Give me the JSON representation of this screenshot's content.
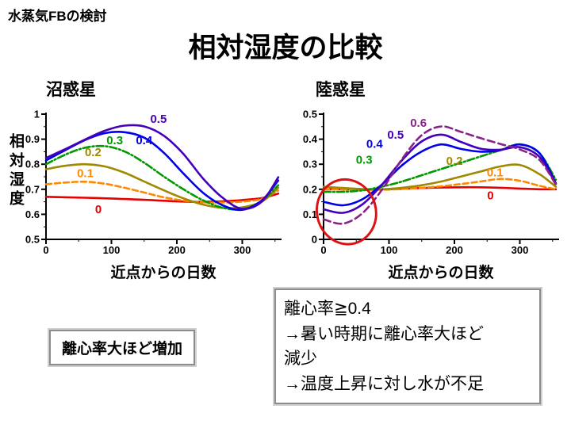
{
  "slide": {
    "topnote": "水蒸気FBの検討",
    "title": "相対湿度の比較"
  },
  "chart_data": [
    {
      "type": "line",
      "title": "沼惑星",
      "xlabel": "近点からの日数",
      "ylabel": "相対湿度",
      "xlim": [
        0,
        360
      ],
      "ylim": [
        0.5,
        1.0
      ],
      "xticks": [
        0,
        100,
        200,
        300
      ],
      "yticks": [
        1,
        0.9,
        0.8,
        0.7,
        0.6,
        0.5
      ],
      "ytick_labels": [
        "1",
        "0.9",
        "0.8",
        "0.7",
        "0.6",
        "0.5"
      ],
      "y_minor": 0.05,
      "grid": false,
      "legend": "inline-labels",
      "x": [
        0,
        30,
        60,
        90,
        120,
        150,
        180,
        210,
        240,
        270,
        300,
        330,
        355
      ],
      "series": [
        {
          "name": "0",
          "color": "#e60000",
          "dash": "none",
          "label_x": 80,
          "label_y": 0.605,
          "values": [
            0.67,
            0.668,
            0.666,
            0.664,
            0.661,
            0.658,
            0.654,
            0.651,
            0.65,
            0.652,
            0.657,
            0.665,
            0.683
          ]
        },
        {
          "name": "0.1",
          "color": "#ff8800",
          "dash": "7,4",
          "label_x": 60,
          "label_y": 0.748,
          "values": [
            0.72,
            0.727,
            0.73,
            0.722,
            0.706,
            0.687,
            0.668,
            0.655,
            0.648,
            0.647,
            0.651,
            0.662,
            0.695
          ]
        },
        {
          "name": "0.2",
          "color": "#a08800",
          "dash": "none",
          "label_x": 72,
          "label_y": 0.832,
          "values": [
            0.78,
            0.794,
            0.8,
            0.791,
            0.766,
            0.731,
            0.696,
            0.664,
            0.639,
            0.626,
            0.628,
            0.651,
            0.706
          ]
        },
        {
          "name": "0.3",
          "color": "#009900",
          "dash": "9,3,2,3",
          "label_x": 105,
          "label_y": 0.88,
          "values": [
            0.8,
            0.839,
            0.866,
            0.872,
            0.851,
            0.806,
            0.751,
            0.7,
            0.656,
            0.626,
            0.621,
            0.654,
            0.716
          ]
        },
        {
          "name": "0.4",
          "color": "#0000ee",
          "dash": "none",
          "label_x": 150,
          "label_y": 0.88,
          "values": [
            0.815,
            0.857,
            0.897,
            0.924,
            0.928,
            0.906,
            0.846,
            0.763,
            0.686,
            0.636,
            0.618,
            0.656,
            0.735
          ]
        },
        {
          "name": "0.5",
          "color": "#4400bb",
          "dash": "none",
          "label_x": 172,
          "label_y": 0.965,
          "values": [
            0.825,
            0.861,
            0.899,
            0.934,
            0.954,
            0.951,
            0.914,
            0.841,
            0.743,
            0.666,
            0.622,
            0.651,
            0.748
          ]
        }
      ]
    },
    {
      "type": "line",
      "title": "陸惑星",
      "xlabel": "近点からの日数",
      "ylabel": "",
      "xlim": [
        0,
        360
      ],
      "ylim": [
        0,
        0.5
      ],
      "xticks": [
        0,
        100,
        200,
        300
      ],
      "yticks": [
        0.5,
        0.4,
        0.3,
        0.2,
        0.1,
        0
      ],
      "ytick_labels": [
        "0.5",
        "0.4",
        "0.3",
        "0.2",
        "0.1",
        "0"
      ],
      "y_minor": 0.05,
      "grid": false,
      "legend": "inline-labels",
      "x": [
        0,
        30,
        60,
        90,
        120,
        150,
        180,
        210,
        240,
        270,
        300,
        330,
        355
      ],
      "series": [
        {
          "name": "0",
          "color": "#e60000",
          "dash": "none",
          "label_x": 255,
          "label_y": 0.16,
          "values": [
            0.2,
            0.2,
            0.2,
            0.2,
            0.202,
            0.205,
            0.207,
            0.208,
            0.208,
            0.206,
            0.203,
            0.2,
            0.2
          ]
        },
        {
          "name": "0.1",
          "color": "#ff8800",
          "dash": "7,4",
          "label_x": 262,
          "label_y": 0.252,
          "values": [
            0.2,
            0.199,
            0.198,
            0.198,
            0.201,
            0.206,
            0.212,
            0.221,
            0.231,
            0.241,
            0.234,
            0.214,
            0.2
          ]
        },
        {
          "name": "0.2",
          "color": "#a08800",
          "dash": "none",
          "label_x": 200,
          "label_y": 0.298,
          "values": [
            0.21,
            0.205,
            0.201,
            0.2,
            0.206,
            0.216,
            0.231,
            0.251,
            0.271,
            0.291,
            0.297,
            0.26,
            0.21
          ]
        },
        {
          "name": "0.3",
          "color": "#009900",
          "dash": "9,3,2,3",
          "label_x": 62,
          "label_y": 0.302,
          "values": [
            0.19,
            0.19,
            0.196,
            0.211,
            0.231,
            0.256,
            0.281,
            0.306,
            0.331,
            0.356,
            0.379,
            0.344,
            0.238
          ]
        },
        {
          "name": "0.4",
          "color": "#0000ee",
          "dash": "none",
          "label_x": 78,
          "label_y": 0.365,
          "values": [
            0.15,
            0.136,
            0.161,
            0.221,
            0.296,
            0.351,
            0.379,
            0.361,
            0.35,
            0.356,
            0.379,
            0.344,
            0.224
          ]
        },
        {
          "name": "0.5",
          "color": "#4400bb",
          "dash": "none",
          "label_x": 110,
          "label_y": 0.402,
          "values": [
            0.12,
            0.106,
            0.141,
            0.221,
            0.316,
            0.391,
            0.418,
            0.389,
            0.362,
            0.358,
            0.368,
            0.329,
            0.221
          ]
        },
        {
          "name": "0.6",
          "color": "#882288",
          "dash": "9,5",
          "label_x": 145,
          "label_y": 0.45,
          "values": [
            0.08,
            0.063,
            0.106,
            0.201,
            0.321,
            0.416,
            0.451,
            0.429,
            0.404,
            0.381,
            0.359,
            0.317,
            0.219
          ]
        }
      ],
      "ellipse": {
        "cx": 35,
        "cy": 0.11,
        "rx_days": 45,
        "ry_units": 0.13,
        "rotate": -15,
        "color": "#dd1111"
      }
    }
  ],
  "callouts": {
    "left_box": "離心率大ほど増加",
    "right_box_lines": [
      "離心率≧0.4",
      "→暑い時期に離心率大ほど",
      "減少",
      "→温度上昇に対し水が不足"
    ]
  }
}
